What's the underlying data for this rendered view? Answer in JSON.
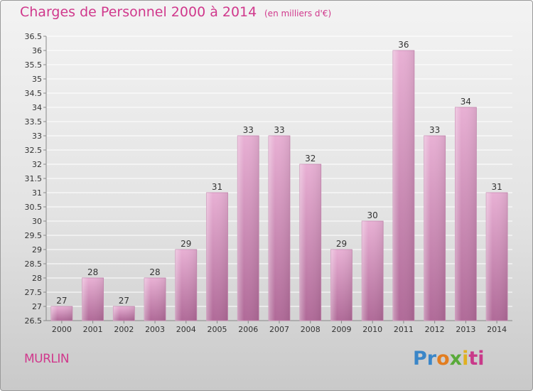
{
  "title": "Charges de Personnel 2000 à 2014",
  "unit": "(en milliers d'€)",
  "commune": "MURLIN",
  "logo": {
    "letters": [
      "Pr",
      "o",
      "x",
      "i",
      "ti"
    ],
    "colors": [
      "#3a86c8",
      "#e27d20",
      "#5aaa3a",
      "#e0b020",
      "#c93a8a"
    ]
  },
  "colors": {
    "title": "#d0388c",
    "bar_light": "#e8b0d4",
    "bar_dark": "#b06a98",
    "grid": "#ffffff"
  },
  "chart_data": {
    "type": "bar",
    "title": "Charges de Personnel 2000 à 2014",
    "unit": "(en milliers d'€)",
    "categories": [
      "2000",
      "2001",
      "2002",
      "2003",
      "2004",
      "2005",
      "2006",
      "2007",
      "2008",
      "2009",
      "2010",
      "2011",
      "2012",
      "2013",
      "2014"
    ],
    "values": [
      27,
      28,
      27,
      28,
      29,
      31,
      33,
      33,
      32,
      29,
      30,
      36,
      33,
      34,
      31
    ],
    "ylim": [
      26.5,
      36.5
    ],
    "yticks": [
      "26.5",
      "27",
      "27.5",
      "28",
      "28.5",
      "29",
      "29.5",
      "30",
      "30.5",
      "31",
      "31.5",
      "32",
      "32.5",
      "33",
      "33.5",
      "34",
      "34.5",
      "35",
      "35.5",
      "36",
      "36.5"
    ],
    "grid": true,
    "legend": "none"
  }
}
